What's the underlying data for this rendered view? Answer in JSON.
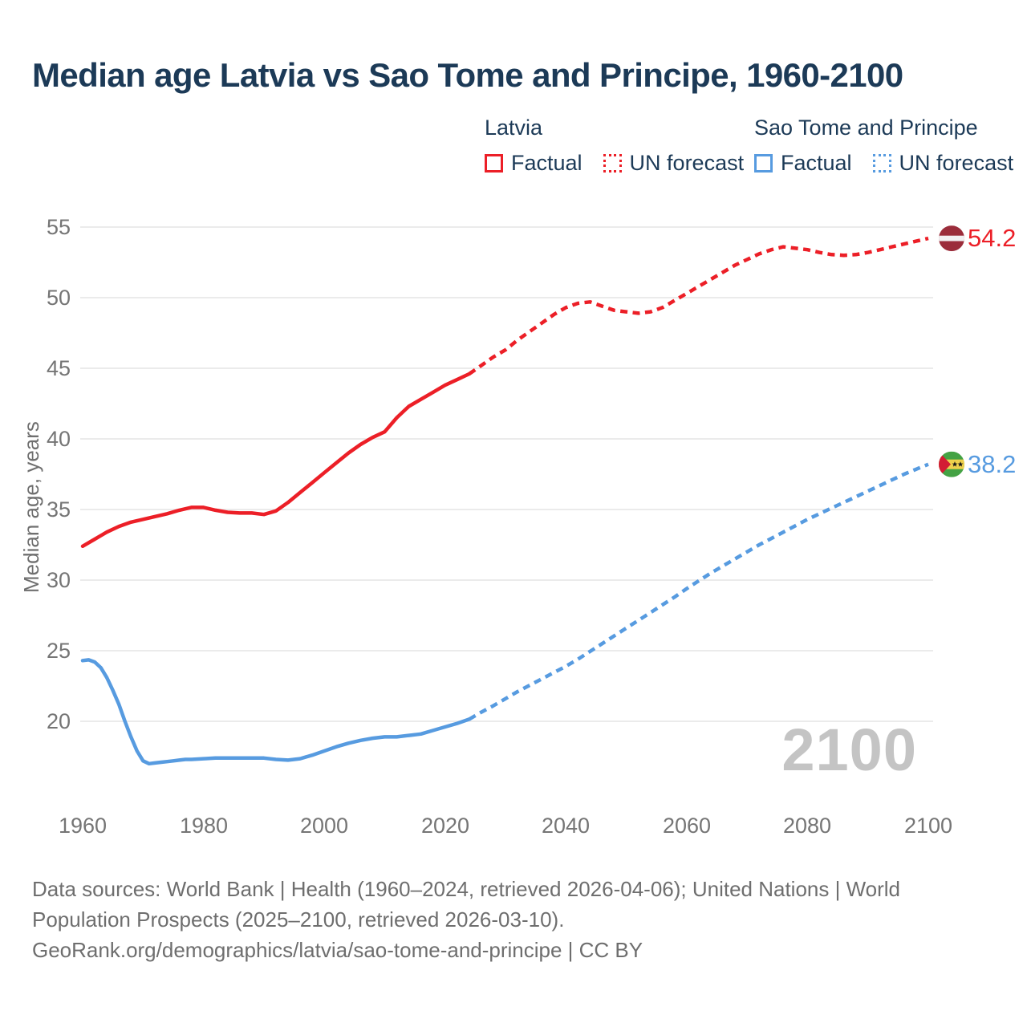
{
  "title": "Median age Latvia vs Sao Tome and Principe, 1960-2100",
  "legend": {
    "latvia": {
      "label": "Latvia",
      "factual": "Factual",
      "forecast": "UN forecast"
    },
    "sao_tome": {
      "label": "Sao Tome and Principe",
      "factual": "Factual",
      "forecast": "UN forecast"
    }
  },
  "colors": {
    "latvia": "#ec1f27",
    "sao_tome": "#579be0",
    "navy_text": "#1c3a57",
    "tick_gray": "#757575",
    "grid_gray": "#ebebeb",
    "watermark_gray": "#c4c4c4"
  },
  "y_axis": {
    "title": "Median age, years",
    "ticks": [
      55,
      50,
      45,
      40,
      35,
      30,
      25,
      20
    ]
  },
  "x_axis": {
    "ticks": [
      1960,
      1980,
      2000,
      2020,
      2040,
      2060,
      2080,
      2100
    ]
  },
  "watermark": "2100",
  "end_labels": {
    "latvia": "54.2",
    "sao_tome": "38.2"
  },
  "footer": {
    "line1": "Data sources: World Bank | Health (1960–2024, retrieved 2026-04-06); United Nations | World",
    "line2": "Population Prospects (2025–2100, retrieved 2026-03-10).",
    "line3": "GeoRank.org/demographics/latvia/sao-tome-and-principe | CC BY"
  },
  "chart_data": {
    "type": "line",
    "title": "Median age Latvia vs Sao Tome and Principe, 1960-2100",
    "xlabel": "",
    "ylabel": "Median age, years",
    "xlim": [
      1960,
      2100
    ],
    "ylim": [
      16.5,
      55
    ],
    "grid": "horizontal",
    "legend_position": "top-right",
    "series": [
      {
        "id": "latvia-factual",
        "name": "Latvia Factual",
        "color_key": "latvia",
        "style": "solid",
        "points": [
          [
            1960,
            32.4
          ],
          [
            1962,
            32.9
          ],
          [
            1964,
            33.4
          ],
          [
            1966,
            33.8
          ],
          [
            1968,
            34.1
          ],
          [
            1970,
            34.3
          ],
          [
            1972,
            34.5
          ],
          [
            1974,
            34.7
          ],
          [
            1976,
            34.95
          ],
          [
            1978,
            35.15
          ],
          [
            1980,
            35.15
          ],
          [
            1982,
            34.95
          ],
          [
            1984,
            34.8
          ],
          [
            1986,
            34.75
          ],
          [
            1988,
            34.75
          ],
          [
            1990,
            34.65
          ],
          [
            1992,
            34.9
          ],
          [
            1994,
            35.5
          ],
          [
            1996,
            36.2
          ],
          [
            1998,
            36.9
          ],
          [
            2000,
            37.6
          ],
          [
            2002,
            38.3
          ],
          [
            2004,
            39.0
          ],
          [
            2006,
            39.6
          ],
          [
            2008,
            40.1
          ],
          [
            2010,
            40.5
          ],
          [
            2012,
            41.5
          ],
          [
            2014,
            42.3
          ],
          [
            2016,
            42.8
          ],
          [
            2018,
            43.3
          ],
          [
            2020,
            43.8
          ],
          [
            2022,
            44.2
          ],
          [
            2024,
            44.6
          ]
        ]
      },
      {
        "id": "latvia-forecast",
        "name": "Latvia UN forecast",
        "color_key": "latvia",
        "style": "dashed",
        "points": [
          [
            2024,
            44.6
          ],
          [
            2026,
            45.2
          ],
          [
            2028,
            45.8
          ],
          [
            2030,
            46.3
          ],
          [
            2032,
            47.0
          ],
          [
            2034,
            47.6
          ],
          [
            2036,
            48.2
          ],
          [
            2038,
            48.8
          ],
          [
            2040,
            49.3
          ],
          [
            2042,
            49.6
          ],
          [
            2044,
            49.7
          ],
          [
            2046,
            49.4
          ],
          [
            2048,
            49.1
          ],
          [
            2050,
            49.0
          ],
          [
            2052,
            48.9
          ],
          [
            2054,
            49.0
          ],
          [
            2056,
            49.3
          ],
          [
            2058,
            49.8
          ],
          [
            2060,
            50.3
          ],
          [
            2062,
            50.8
          ],
          [
            2064,
            51.3
          ],
          [
            2066,
            51.8
          ],
          [
            2068,
            52.3
          ],
          [
            2070,
            52.7
          ],
          [
            2072,
            53.1
          ],
          [
            2074,
            53.4
          ],
          [
            2076,
            53.6
          ],
          [
            2078,
            53.5
          ],
          [
            2080,
            53.4
          ],
          [
            2082,
            53.2
          ],
          [
            2084,
            53.05
          ],
          [
            2086,
            53.0
          ],
          [
            2088,
            53.05
          ],
          [
            2090,
            53.2
          ],
          [
            2092,
            53.4
          ],
          [
            2094,
            53.6
          ],
          [
            2096,
            53.8
          ],
          [
            2098,
            54.0
          ],
          [
            2100,
            54.2
          ]
        ]
      },
      {
        "id": "saotome-factual",
        "name": "Sao Tome and Principe Factual",
        "color_key": "sao_tome",
        "style": "solid",
        "points": [
          [
            1960,
            24.3
          ],
          [
            1961,
            24.35
          ],
          [
            1962,
            24.2
          ],
          [
            1963,
            23.8
          ],
          [
            1964,
            23.1
          ],
          [
            1965,
            22.2
          ],
          [
            1966,
            21.2
          ],
          [
            1967,
            20.0
          ],
          [
            1968,
            18.9
          ],
          [
            1969,
            17.9
          ],
          [
            1970,
            17.2
          ],
          [
            1971,
            17.0
          ],
          [
            1972,
            17.05
          ],
          [
            1973,
            17.1
          ],
          [
            1974,
            17.15
          ],
          [
            1975,
            17.2
          ],
          [
            1976,
            17.25
          ],
          [
            1977,
            17.3
          ],
          [
            1978,
            17.3
          ],
          [
            1980,
            17.35
          ],
          [
            1982,
            17.4
          ],
          [
            1984,
            17.4
          ],
          [
            1986,
            17.4
          ],
          [
            1988,
            17.4
          ],
          [
            1990,
            17.4
          ],
          [
            1992,
            17.3
          ],
          [
            1994,
            17.25
          ],
          [
            1996,
            17.35
          ],
          [
            1998,
            17.6
          ],
          [
            2000,
            17.9
          ],
          [
            2002,
            18.2
          ],
          [
            2004,
            18.45
          ],
          [
            2006,
            18.65
          ],
          [
            2008,
            18.8
          ],
          [
            2010,
            18.9
          ],
          [
            2012,
            18.9
          ],
          [
            2014,
            19.0
          ],
          [
            2016,
            19.1
          ],
          [
            2018,
            19.35
          ],
          [
            2020,
            19.6
          ],
          [
            2022,
            19.85
          ],
          [
            2024,
            20.15
          ]
        ]
      },
      {
        "id": "saotome-forecast",
        "name": "Sao Tome and Principe UN forecast",
        "color_key": "sao_tome",
        "style": "dashed",
        "points": [
          [
            2024,
            20.15
          ],
          [
            2026,
            20.65
          ],
          [
            2028,
            21.1
          ],
          [
            2030,
            21.6
          ],
          [
            2032,
            22.1
          ],
          [
            2034,
            22.55
          ],
          [
            2036,
            23.0
          ],
          [
            2038,
            23.45
          ],
          [
            2040,
            23.9
          ],
          [
            2042,
            24.4
          ],
          [
            2044,
            24.95
          ],
          [
            2046,
            25.5
          ],
          [
            2048,
            26.05
          ],
          [
            2050,
            26.6
          ],
          [
            2052,
            27.15
          ],
          [
            2054,
            27.7
          ],
          [
            2056,
            28.25
          ],
          [
            2058,
            28.8
          ],
          [
            2060,
            29.4
          ],
          [
            2062,
            29.95
          ],
          [
            2064,
            30.5
          ],
          [
            2066,
            31.0
          ],
          [
            2068,
            31.5
          ],
          [
            2070,
            32.0
          ],
          [
            2072,
            32.5
          ],
          [
            2074,
            32.95
          ],
          [
            2076,
            33.4
          ],
          [
            2078,
            33.85
          ],
          [
            2080,
            34.3
          ],
          [
            2082,
            34.7
          ],
          [
            2084,
            35.1
          ],
          [
            2086,
            35.5
          ],
          [
            2088,
            35.9
          ],
          [
            2090,
            36.3
          ],
          [
            2092,
            36.7
          ],
          [
            2094,
            37.1
          ],
          [
            2096,
            37.5
          ],
          [
            2098,
            37.85
          ],
          [
            2100,
            38.2
          ]
        ]
      }
    ],
    "end_markers": [
      {
        "series": "Latvia",
        "year": 2100,
        "value": 54.2,
        "label": "54.2",
        "icon": "flag-lv"
      },
      {
        "series": "Sao Tome and Principe",
        "year": 2100,
        "value": 38.2,
        "label": "38.2",
        "icon": "flag-st"
      }
    ]
  }
}
